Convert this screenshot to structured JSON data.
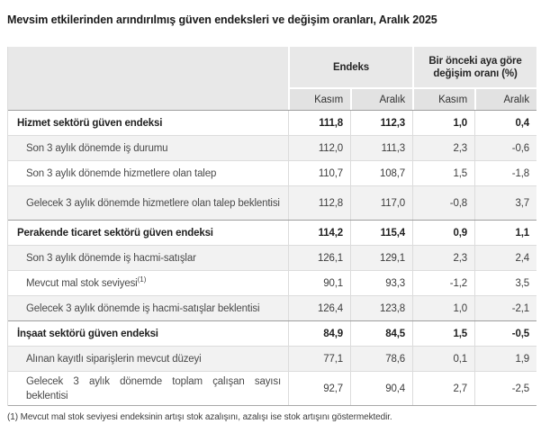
{
  "page": {
    "title": "Mevsim etkilerinden arındırılmış güven endeksleri ve değişim oranları, Aralık 2025"
  },
  "colors": {
    "header_bg": "#e8e8e8",
    "subheader_bg": "#e2e2e2",
    "row_alt_bg": "#f2f2f2",
    "section_border": "#9e9e9e"
  },
  "table": {
    "column_groups": [
      {
        "label": "Endeks"
      },
      {
        "label": "Bir önceki aya göre değişim oranı (%)"
      }
    ],
    "sub_headers": [
      "Kasım",
      "Aralık",
      "Kasım",
      "Aralık"
    ],
    "rows": [
      {
        "label": "Hizmet sektörü güven endeksi",
        "type": "section",
        "values": [
          "111,8",
          "112,3",
          "1,0",
          "0,4"
        ]
      },
      {
        "label": "Son 3 aylık dönemde iş durumu",
        "type": "sub",
        "values": [
          "112,0",
          "111,3",
          "2,3",
          "-0,6"
        ]
      },
      {
        "label": "Son 3 aylık dönemde hizmetlere olan talep",
        "type": "sub",
        "values": [
          "110,7",
          "108,7",
          "1,5",
          "-1,8"
        ]
      },
      {
        "label": "Gelecek 3 aylık dönemde hizmetlere olan talep beklentisi",
        "type": "sub",
        "values": [
          "112,8",
          "117,0",
          "-0,8",
          "3,7"
        ]
      },
      {
        "label": "Perakende ticaret sektörü güven endeksi",
        "type": "section",
        "values": [
          "114,2",
          "115,4",
          "0,9",
          "1,1"
        ]
      },
      {
        "label": "Son 3 aylık dönemde iş hacmi-satışlar",
        "type": "sub",
        "values": [
          "126,1",
          "129,1",
          "2,3",
          "2,4"
        ]
      },
      {
        "label": "Mevcut mal stok seviyesi",
        "sup": "(1)",
        "type": "sub",
        "values": [
          "90,1",
          "93,3",
          "-1,2",
          "3,5"
        ]
      },
      {
        "label": "Gelecek 3 aylık dönemde iş hacmi-satışlar beklentisi",
        "type": "sub",
        "values": [
          "126,4",
          "123,8",
          "1,0",
          "-2,1"
        ]
      },
      {
        "label": "İnşaat sektörü güven endeksi",
        "type": "section",
        "values": [
          "84,9",
          "84,5",
          "1,5",
          "-0,5"
        ]
      },
      {
        "label": "Alınan kayıtlı siparişlerin mevcut düzeyi",
        "type": "sub",
        "values": [
          "77,1",
          "78,6",
          "0,1",
          "1,9"
        ]
      },
      {
        "label": "Gelecek 3 aylık dönemde toplam çalışan sayısı beklentisi",
        "type": "sub",
        "values": [
          "92,7",
          "90,4",
          "2,7",
          "-2,5"
        ]
      }
    ]
  },
  "footnote": "(1) Mevcut mal stok seviyesi endeksinin artışı stok azalışını, azalışı ise stok artışını göstermektedir."
}
